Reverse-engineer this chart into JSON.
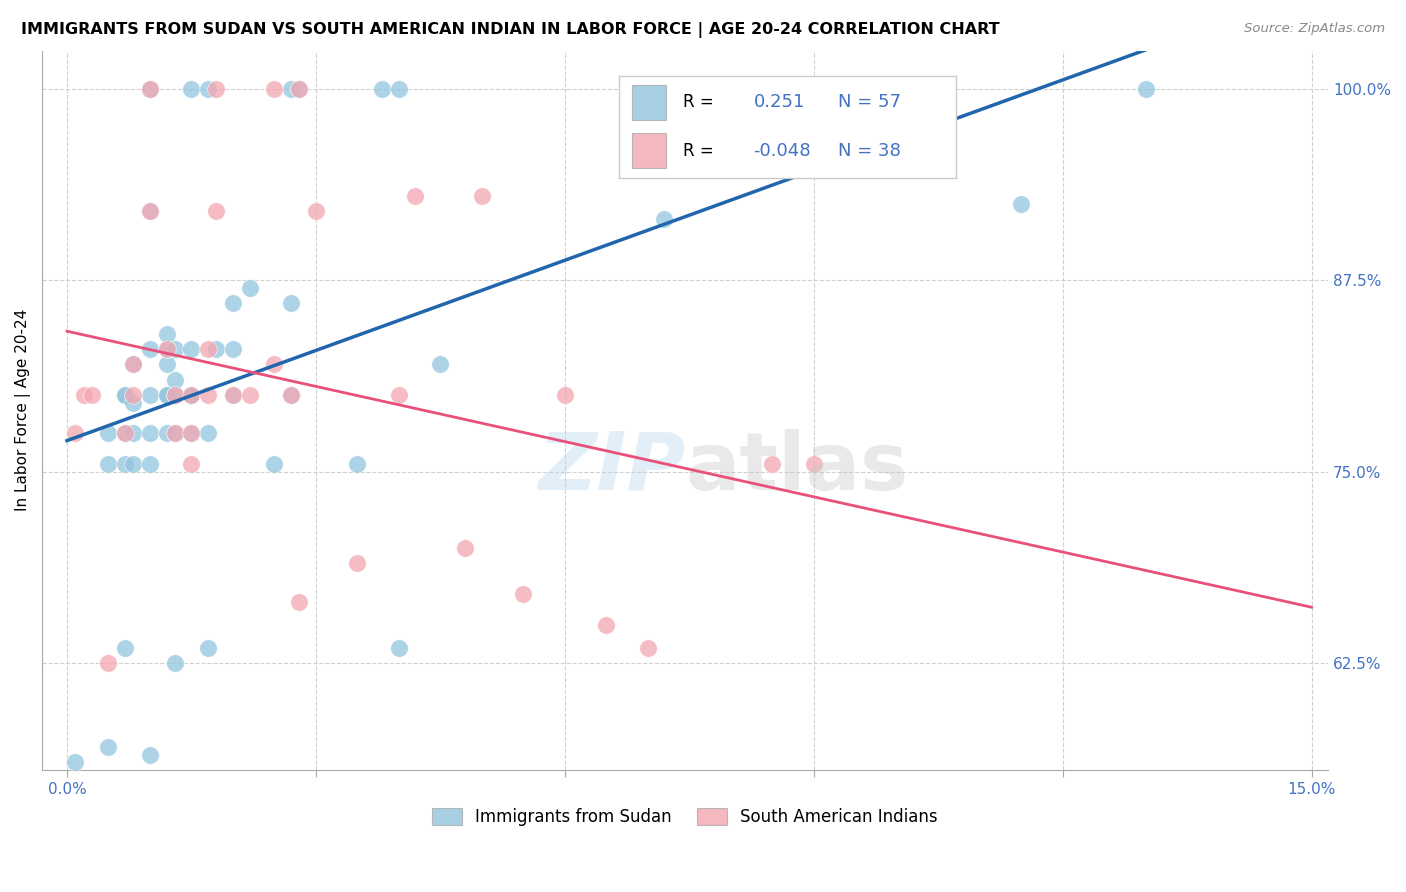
{
  "title": "IMMIGRANTS FROM SUDAN VS SOUTH AMERICAN INDIAN IN LABOR FORCE | AGE 20-24 CORRELATION CHART",
  "source": "Source: ZipAtlas.com",
  "ylabel": "In Labor Force | Age 20-24",
  "xlim": [
    -0.003,
    0.152
  ],
  "ylim": [
    0.555,
    1.025
  ],
  "x_tick_positions": [
    0.0,
    0.03,
    0.06,
    0.09,
    0.12,
    0.15
  ],
  "x_tick_labels": [
    "0.0%",
    "",
    "",
    "",
    "",
    "15.0%"
  ],
  "y_tick_vals_right": [
    1.0,
    0.875,
    0.75,
    0.625
  ],
  "y_tick_labels_right": [
    "100.0%",
    "87.5%",
    "75.0%",
    "62.5%"
  ],
  "legend_sudan_r": "0.251",
  "legend_sudan_n": "57",
  "legend_sai_r": "-0.048",
  "legend_sai_n": "38",
  "sudan_color": "#92c5de",
  "sai_color": "#f4a6b0",
  "sudan_line_color": "#2166ac",
  "sai_line_color": "#e8517a",
  "right_axis_color": "#4472c4",
  "background_color": "#ffffff",
  "grid_color": "#d0d0d0",
  "legend_label_sudan": "Immigrants from Sudan",
  "legend_label_sai": "South American Indians",
  "sudan_x": [
    0.001,
    0.005,
    0.005,
    0.005,
    0.007,
    0.007,
    0.007,
    0.007,
    0.007,
    0.008,
    0.008,
    0.008,
    0.008,
    0.01,
    0.01,
    0.01,
    0.01,
    0.01,
    0.01,
    0.01,
    0.012,
    0.012,
    0.012,
    0.012,
    0.012,
    0.012,
    0.013,
    0.013,
    0.013,
    0.013,
    0.013,
    0.015,
    0.015,
    0.015,
    0.015,
    0.015,
    0.017,
    0.017,
    0.017,
    0.018,
    0.02,
    0.02,
    0.02,
    0.022,
    0.025,
    0.027,
    0.027,
    0.027,
    0.028,
    0.035,
    0.038,
    0.04,
    0.04,
    0.045,
    0.072,
    0.115,
    0.13
  ],
  "sudan_y": [
    0.56,
    0.57,
    0.755,
    0.775,
    0.635,
    0.755,
    0.775,
    0.8,
    0.8,
    0.755,
    0.775,
    0.795,
    0.82,
    0.565,
    0.755,
    0.775,
    0.8,
    0.83,
    0.92,
    1.0,
    0.775,
    0.8,
    0.8,
    0.82,
    0.83,
    0.84,
    0.625,
    0.775,
    0.8,
    0.81,
    0.83,
    0.775,
    0.8,
    0.8,
    0.83,
    1.0,
    0.635,
    0.775,
    1.0,
    0.83,
    0.8,
    0.83,
    0.86,
    0.87,
    0.755,
    0.8,
    0.86,
    1.0,
    1.0,
    0.755,
    1.0,
    0.635,
    1.0,
    0.82,
    0.915,
    0.925,
    1.0
  ],
  "sai_x": [
    0.001,
    0.002,
    0.003,
    0.005,
    0.007,
    0.008,
    0.008,
    0.01,
    0.01,
    0.012,
    0.013,
    0.013,
    0.015,
    0.015,
    0.015,
    0.017,
    0.017,
    0.018,
    0.018,
    0.02,
    0.022,
    0.025,
    0.025,
    0.027,
    0.028,
    0.028,
    0.03,
    0.035,
    0.04,
    0.042,
    0.048,
    0.05,
    0.055,
    0.06,
    0.065,
    0.07,
    0.085,
    0.09
  ],
  "sai_y": [
    0.775,
    0.8,
    0.8,
    0.625,
    0.775,
    0.8,
    0.82,
    0.92,
    1.0,
    0.83,
    0.775,
    0.8,
    0.755,
    0.775,
    0.8,
    0.8,
    0.83,
    0.92,
    1.0,
    0.8,
    0.8,
    0.82,
    1.0,
    0.8,
    0.665,
    1.0,
    0.92,
    0.69,
    0.8,
    0.93,
    0.7,
    0.93,
    0.67,
    0.8,
    0.65,
    0.635,
    0.755,
    0.755
  ],
  "sudan_line_x0": 0.0,
  "sudan_line_x1": 0.15,
  "sai_line_x0": 0.0,
  "sai_line_x1": 0.15
}
